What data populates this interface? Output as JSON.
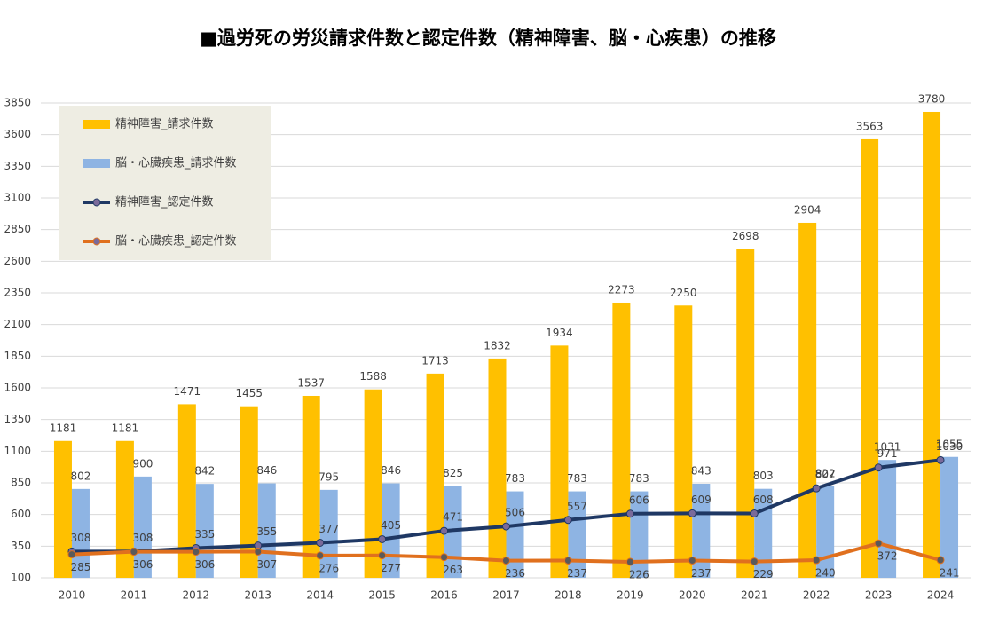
{
  "chart_data": {
    "type": "bar-line",
    "title": "■過労死の労災請求件数と認定件数（精神障害、脳・心疾患）の推移",
    "categories": [
      "2010",
      "2011",
      "2012",
      "2013",
      "2014",
      "2015",
      "2016",
      "2017",
      "2018",
      "2019",
      "2020",
      "2021",
      "2022",
      "2023",
      "2024"
    ],
    "series": [
      {
        "name": "精神障害_請求件数",
        "kind": "bar",
        "color": "#ffc000",
        "values": [
          1181,
          1181,
          1471,
          1455,
          1537,
          1588,
          1713,
          1832,
          1934,
          2273,
          2250,
          2698,
          2904,
          3563,
          3780
        ]
      },
      {
        "name": "脳・心臓疾患_請求件数",
        "kind": "bar",
        "color": "#8eb4e3",
        "values": [
          802,
          900,
          842,
          846,
          795,
          846,
          825,
          783,
          783,
          783,
          843,
          803,
          822,
          1031,
          1055
        ]
      },
      {
        "name": "精神障害_認定件数",
        "kind": "line",
        "color": "#1f3864",
        "values": [
          308,
          308,
          335,
          355,
          377,
          405,
          471,
          506,
          557,
          606,
          609,
          608,
          807,
          971,
          1030
        ]
      },
      {
        "name": "脳・心臓疾患_認定件数",
        "kind": "line",
        "color": "#e0701e",
        "values": [
          285,
          306,
          306,
          307,
          276,
          277,
          263,
          236,
          237,
          226,
          237,
          229,
          240,
          372,
          241
        ]
      }
    ],
    "ylim": [
      100,
      3850
    ],
    "yticks": [
      100,
      350,
      600,
      850,
      1100,
      1350,
      1600,
      1850,
      2100,
      2350,
      2600,
      2850,
      3100,
      3350,
      3600,
      3850
    ],
    "grid": true
  }
}
